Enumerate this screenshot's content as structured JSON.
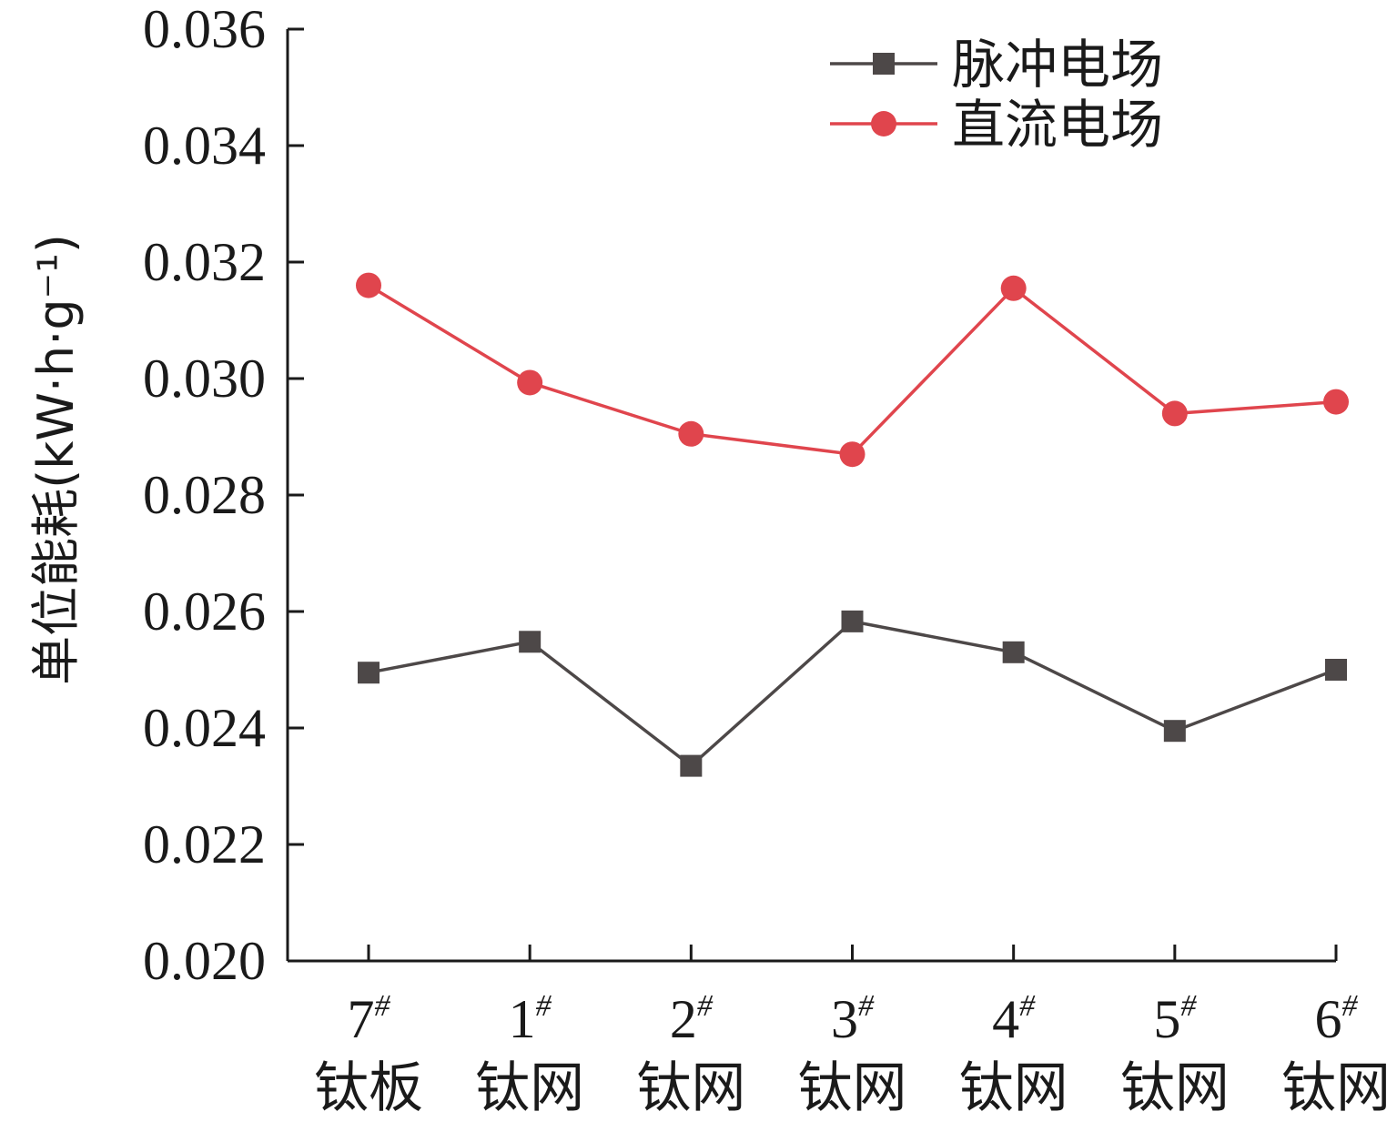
{
  "chart_data": {
    "type": "line",
    "categories": [
      {
        "num": "7",
        "sup": "#",
        "name": "钛板"
      },
      {
        "num": "1",
        "sup": "#",
        "name": "钛网"
      },
      {
        "num": "2",
        "sup": "#",
        "name": "钛网"
      },
      {
        "num": "3",
        "sup": "#",
        "name": "钛网"
      },
      {
        "num": "4",
        "sup": "#",
        "name": "钛网"
      },
      {
        "num": "5",
        "sup": "#",
        "name": "钛网"
      },
      {
        "num": "6",
        "sup": "#",
        "name": "钛网"
      }
    ],
    "series": [
      {
        "name": "脉冲电场",
        "marker": "square",
        "color": "#4d4848",
        "values": [
          0.02495,
          0.02548,
          0.02335,
          0.02583,
          0.0253,
          0.02395,
          0.025
        ]
      },
      {
        "name": "直流电场",
        "marker": "circle",
        "color": "#e0454d",
        "values": [
          0.0316,
          0.02993,
          0.02905,
          0.0287,
          0.03155,
          0.0294,
          0.0296
        ]
      }
    ],
    "ylabel": "单位能耗(kW·h·g⁻¹)",
    "ylim": [
      0.02,
      0.036
    ],
    "yticks": [
      "0.020",
      "0.022",
      "0.024",
      "0.026",
      "0.028",
      "0.030",
      "0.032",
      "0.034",
      "0.036"
    ],
    "grid": false,
    "legend_position": "top-right"
  }
}
